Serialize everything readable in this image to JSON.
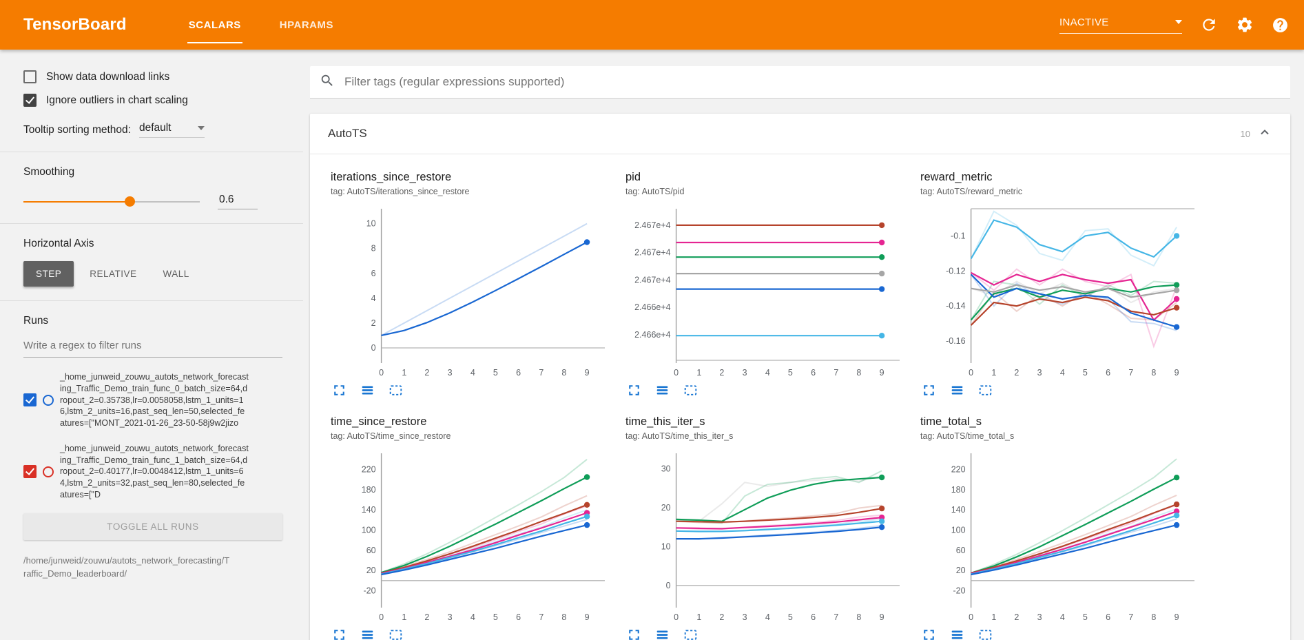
{
  "header": {
    "app_title": "TensorBoard",
    "tabs": [
      {
        "label": "SCALARS",
        "active": true
      },
      {
        "label": "HPARAMS",
        "active": false
      }
    ],
    "status_dropdown": {
      "value": "INACTIVE"
    }
  },
  "sidebar": {
    "show_download_links": {
      "label": "Show data download links",
      "checked": false
    },
    "ignore_outliers": {
      "label": "Ignore outliers in chart scaling",
      "checked": true
    },
    "tooltip_sorting": {
      "label": "Tooltip sorting method:",
      "value": "default"
    },
    "smoothing": {
      "label": "Smoothing",
      "value": "0.6",
      "fraction": 0.6
    },
    "horizontal_axis": {
      "label": "Horizontal Axis",
      "options": [
        {
          "label": "STEP",
          "selected": true
        },
        {
          "label": "RELATIVE",
          "selected": false
        },
        {
          "label": "WALL",
          "selected": false
        }
      ]
    },
    "runs": {
      "label": "Runs",
      "filter_placeholder": "Write a regex to filter runs",
      "items": [
        {
          "checked": true,
          "color": "#1967d2",
          "label": "_home_junweid_zouwu_autots_network_forecasting_Traffic_Demo_train_func_0_batch_size=64,dropout_2=0.35738,lr=0.0058058,lstm_1_units=16,lstm_2_units=16,past_seq_len=50,selected_features=[\"MONT_2021-01-26_23-50-58j9w2jizo"
        },
        {
          "checked": true,
          "color": "#d93025",
          "label": "_home_junweid_zouwu_autots_network_forecasting_Traffic_Demo_train_func_1_batch_size=64,dropout_2=0.40177,lr=0.0048412,lstm_1_units=64,lstm_2_units=32,past_seq_len=80,selected_features=[\"D"
        }
      ],
      "toggle_all_label": "TOGGLE ALL RUNS",
      "footer_path": "/home/junweid/zouwu/autots_network_forecasting/Traffic_Demo_leaderboard/"
    }
  },
  "main": {
    "filter_placeholder": "Filter tags (regular expressions supported)",
    "section": {
      "title": "AutoTS",
      "count": "10"
    }
  },
  "palette": {
    "blue": "#1967d2",
    "cyan": "#45b6e6",
    "pink": "#e52592",
    "red": "#b6442c",
    "green": "#0f9d58",
    "gray": "#a6a6a6",
    "accent_orange": "#f57c00",
    "icon_blue": "#1976d2"
  },
  "chart_data": [
    {
      "type": "line",
      "title": "iterations_since_restore",
      "tag": "tag: AutoTS/iterations_since_restore",
      "xticks": [
        0,
        1,
        2,
        3,
        4,
        5,
        6,
        7,
        8,
        9
      ],
      "ylim": [
        -1.0,
        11.2
      ],
      "yticks": [
        {
          "v": 0,
          "l": "0"
        },
        {
          "v": 2,
          "l": "2"
        },
        {
          "v": 4,
          "l": "4"
        },
        {
          "v": 6,
          "l": "6"
        },
        {
          "v": 8,
          "l": "8"
        },
        {
          "v": 10,
          "l": "10"
        }
      ],
      "series": [
        {
          "color": "blue",
          "raw": [
            1,
            2,
            3,
            4,
            5,
            6,
            7,
            8,
            9,
            10
          ],
          "values": [
            1,
            1.4,
            2.04,
            2.82,
            3.69,
            4.62,
            5.57,
            6.54,
            7.53,
            8.51
          ]
        }
      ]
    },
    {
      "type": "line",
      "title": "pid",
      "tag": "tag: AutoTS/pid",
      "xticks": [
        0,
        1,
        2,
        3,
        4,
        5,
        6,
        7,
        8,
        9
      ],
      "ylim": [
        24657.2,
        24673.8
      ],
      "yticks": [
        {
          "v": 24672,
          "l": "2.467e+4"
        },
        {
          "v": 24669,
          "l": "2.467e+4"
        },
        {
          "v": 24666,
          "l": "2.467e+4"
        },
        {
          "v": 24663,
          "l": "2.466e+4"
        },
        {
          "v": 24660,
          "l": "2.466e+4"
        }
      ],
      "series": [
        {
          "color": "red",
          "values": [
            24672,
            24672,
            24672,
            24672,
            24672,
            24672,
            24672,
            24672,
            24672,
            24672
          ]
        },
        {
          "color": "pink",
          "values": [
            24670.1,
            24670.1,
            24670.1,
            24670.1,
            24670.1,
            24670.1,
            24670.1,
            24670.1,
            24670.1,
            24670.1
          ]
        },
        {
          "color": "green",
          "values": [
            24668.5,
            24668.5,
            24668.5,
            24668.5,
            24668.5,
            24668.5,
            24668.5,
            24668.5,
            24668.5,
            24668.5
          ]
        },
        {
          "color": "gray",
          "values": [
            24666.7,
            24666.7,
            24666.7,
            24666.7,
            24666.7,
            24666.7,
            24666.7,
            24666.7,
            24666.7,
            24666.7
          ]
        },
        {
          "color": "blue",
          "values": [
            24665,
            24665,
            24665,
            24665,
            24665,
            24665,
            24665,
            24665,
            24665,
            24665
          ]
        },
        {
          "color": "cyan",
          "values": [
            24659.9,
            24659.9,
            24659.9,
            24659.9,
            24659.9,
            24659.9,
            24659.9,
            24659.9,
            24659.9,
            24659.9
          ]
        }
      ]
    },
    {
      "type": "line",
      "title": "reward_metric",
      "tag": "tag: AutoTS/reward_metric",
      "xticks": [
        0,
        1,
        2,
        3,
        4,
        5,
        6,
        7,
        8,
        9
      ],
      "ylim": [
        -0.171,
        -0.0845
      ],
      "yticks": [
        {
          "v": -0.1,
          "l": "-0.1"
        },
        {
          "v": -0.12,
          "l": "-0.12"
        },
        {
          "v": -0.14,
          "l": "-0.14"
        },
        {
          "v": -0.16,
          "l": "-0.16"
        }
      ],
      "series": [
        {
          "color": "cyan",
          "values": [
            -0.113,
            -0.091,
            -0.095,
            -0.105,
            -0.109,
            -0.1,
            -0.098,
            -0.107,
            -0.112,
            -0.1
          ],
          "raw": [
            -0.113,
            -0.086,
            -0.094,
            -0.11,
            -0.114,
            -0.097,
            -0.096,
            -0.111,
            -0.117,
            -0.095
          ]
        },
        {
          "color": "pink",
          "values": [
            -0.121,
            -0.128,
            -0.122,
            -0.126,
            -0.122,
            -0.125,
            -0.127,
            -0.125,
            -0.148,
            -0.136
          ],
          "raw": [
            -0.121,
            -0.131,
            -0.119,
            -0.128,
            -0.119,
            -0.126,
            -0.129,
            -0.122,
            -0.163,
            -0.129
          ]
        },
        {
          "color": "green",
          "values": [
            -0.148,
            -0.133,
            -0.13,
            -0.135,
            -0.131,
            -0.133,
            -0.13,
            -0.132,
            -0.129,
            -0.128
          ],
          "raw": [
            -0.148,
            -0.126,
            -0.128,
            -0.139,
            -0.128,
            -0.135,
            -0.128,
            -0.134,
            -0.126,
            -0.127
          ]
        },
        {
          "color": "red",
          "values": [
            -0.151,
            -0.138,
            -0.14,
            -0.136,
            -0.138,
            -0.135,
            -0.137,
            -0.143,
            -0.145,
            -0.141
          ],
          "raw": [
            -0.151,
            -0.132,
            -0.143,
            -0.133,
            -0.14,
            -0.132,
            -0.139,
            -0.147,
            -0.148,
            -0.138
          ]
        },
        {
          "color": "blue",
          "values": [
            -0.122,
            -0.135,
            -0.13,
            -0.133,
            -0.136,
            -0.134,
            -0.135,
            -0.144,
            -0.148,
            -0.152
          ],
          "raw": [
            -0.122,
            -0.14,
            -0.127,
            -0.135,
            -0.139,
            -0.133,
            -0.136,
            -0.149,
            -0.15,
            -0.154
          ]
        },
        {
          "color": "gray",
          "values": [
            -0.13,
            -0.132,
            -0.128,
            -0.131,
            -0.129,
            -0.132,
            -0.13,
            -0.135,
            -0.133,
            -0.131
          ],
          "raw": [
            -0.13,
            -0.134,
            -0.126,
            -0.133,
            -0.127,
            -0.134,
            -0.129,
            -0.138,
            -0.132,
            -0.13
          ]
        }
      ]
    },
    {
      "type": "line",
      "title": "time_since_restore",
      "tag": "tag: AutoTS/time_since_restore",
      "xticks": [
        0,
        1,
        2,
        3,
        4,
        5,
        6,
        7,
        8,
        9
      ],
      "ylim": [
        -48,
        252
      ],
      "yticks": [
        {
          "v": -20,
          "l": "-20"
        },
        {
          "v": 20,
          "l": "20"
        },
        {
          "v": 60,
          "l": "60"
        },
        {
          "v": 100,
          "l": "100"
        },
        {
          "v": 140,
          "l": "140"
        },
        {
          "v": 180,
          "l": "180"
        },
        {
          "v": 220,
          "l": "220"
        }
      ],
      "series": [
        {
          "color": "green",
          "values": [
            16,
            30,
            48,
            68,
            90,
            112,
            135,
            158,
            182,
            205
          ],
          "raw": [
            16,
            33,
            53,
            76,
            100,
            125,
            150,
            176,
            204,
            240
          ]
        },
        {
          "color": "red",
          "values": [
            15,
            26,
            39,
            53,
            68,
            84,
            100,
            117,
            133,
            150
          ],
          "raw": [
            15,
            28,
            42,
            57,
            74,
            91,
            108,
            126,
            148,
            168
          ]
        },
        {
          "color": "pink",
          "values": [
            14,
            24,
            36,
            48,
            61,
            75,
            90,
            104,
            119,
            134
          ],
          "raw": [
            14,
            26,
            39,
            52,
            66,
            81,
            97,
            112,
            132,
            148
          ]
        },
        {
          "color": "cyan",
          "values": [
            13,
            23,
            34,
            46,
            58,
            71,
            85,
            98,
            113,
            127
          ],
          "raw": [
            13,
            25,
            37,
            49,
            63,
            77,
            92,
            106,
            124,
            140
          ]
        },
        {
          "color": "blue",
          "values": [
            12,
            21,
            31,
            42,
            53,
            64,
            76,
            88,
            99,
            110
          ],
          "raw": [
            12,
            23,
            33,
            45,
            57,
            69,
            82,
            95,
            108,
            121
          ]
        }
      ]
    },
    {
      "type": "line",
      "title": "time_this_iter_s",
      "tag": "tag: AutoTS/time_this_iter_s",
      "xticks": [
        0,
        1,
        2,
        3,
        4,
        5,
        6,
        7,
        8,
        9
      ],
      "ylim": [
        -5,
        34
      ],
      "yticks": [
        {
          "v": 0,
          "l": "0"
        },
        {
          "v": 10,
          "l": "10"
        },
        {
          "v": 20,
          "l": "20"
        },
        {
          "v": 30,
          "l": "30"
        }
      ],
      "series": [
        {
          "color": "gray",
          "raw": [
            16.8,
            16.5,
            21,
            26.5,
            25.5,
            26.5,
            27,
            27.5,
            26.8,
            28.2
          ]
        },
        {
          "color": "green",
          "values": [
            17,
            16.8,
            16.5,
            19.5,
            22.5,
            24.5,
            26,
            27,
            27.4,
            27.8
          ],
          "raw": [
            17,
            16.4,
            16,
            23,
            26,
            26.5,
            27.5,
            28,
            26.5,
            29.5
          ]
        },
        {
          "color": "red",
          "values": [
            16.5,
            16.4,
            16.3,
            16.5,
            16.8,
            17.1,
            17.5,
            18,
            18.8,
            19.8
          ],
          "raw": [
            16.5,
            16.2,
            16.1,
            16.6,
            17,
            17.4,
            17.9,
            18.5,
            19.9,
            20.6
          ]
        },
        {
          "color": "pink",
          "values": [
            14.8,
            14.7,
            14.6,
            14.9,
            15.2,
            15.5,
            15.9,
            16.3,
            16.9,
            17.5
          ],
          "raw": [
            14.8,
            14.5,
            14.5,
            15,
            15.4,
            15.7,
            16.2,
            16.7,
            17.6,
            18.1
          ]
        },
        {
          "color": "cyan",
          "values": [
            14,
            13.9,
            13.9,
            14.1,
            14.4,
            14.7,
            15.1,
            15.5,
            16,
            16.5
          ],
          "raw": [
            14,
            13.8,
            13.9,
            14.2,
            14.6,
            14.9,
            15.4,
            15.8,
            16.5,
            17
          ]
        },
        {
          "color": "blue",
          "values": [
            12,
            12,
            12.2,
            12.5,
            12.8,
            13.1,
            13.5,
            13.9,
            14.4,
            15
          ],
          "raw": [
            12,
            11.9,
            12.3,
            12.6,
            13,
            13.3,
            13.7,
            14.2,
            14.7,
            15.4
          ]
        }
      ]
    },
    {
      "type": "line",
      "title": "time_total_s",
      "tag": "tag: AutoTS/time_total_s",
      "xticks": [
        0,
        1,
        2,
        3,
        4,
        5,
        6,
        7,
        8,
        9
      ],
      "ylim": [
        -48,
        252
      ],
      "yticks": [
        {
          "v": -20,
          "l": "-20"
        },
        {
          "v": 20,
          "l": "20"
        },
        {
          "v": 60,
          "l": "60"
        },
        {
          "v": 100,
          "l": "100"
        },
        {
          "v": 140,
          "l": "140"
        },
        {
          "v": 180,
          "l": "180"
        },
        {
          "v": 220,
          "l": "220"
        }
      ],
      "series": [
        {
          "color": "green",
          "values": [
            15,
            29,
            47,
            67,
            89,
            111,
            134,
            157,
            181,
            204
          ],
          "raw": [
            15,
            32,
            52,
            75,
            99,
            124,
            150,
            176,
            204,
            241
          ]
        },
        {
          "color": "red",
          "values": [
            15,
            26,
            39,
            53,
            68,
            84,
            101,
            117,
            134,
            151
          ],
          "raw": [
            15,
            28,
            42,
            58,
            74,
            91,
            109,
            127,
            149,
            169
          ]
        },
        {
          "color": "pink",
          "values": [
            14,
            24,
            36,
            49,
            62,
            76,
            91,
            106,
            121,
            137
          ],
          "raw": [
            14,
            26,
            39,
            53,
            67,
            82,
            98,
            113,
            133,
            150
          ]
        },
        {
          "color": "cyan",
          "values": [
            13,
            23,
            34,
            46,
            58,
            71,
            85,
            99,
            114,
            129
          ],
          "raw": [
            13,
            25,
            37,
            50,
            63,
            77,
            93,
            107,
            126,
            142
          ]
        },
        {
          "color": "blue",
          "values": [
            12,
            21,
            31,
            42,
            53,
            64,
            76,
            88,
            99,
            110
          ],
          "raw": [
            12,
            23,
            33,
            45,
            57,
            69,
            83,
            96,
            108,
            122
          ]
        }
      ]
    }
  ]
}
